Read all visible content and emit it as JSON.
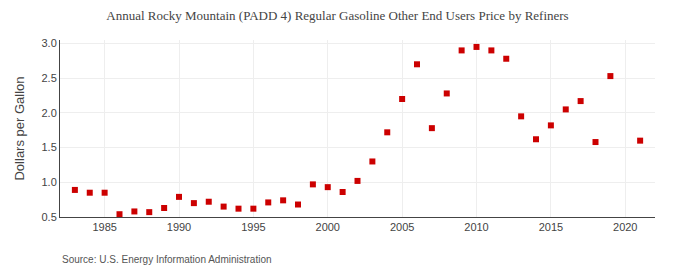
{
  "chart_data": {
    "type": "scatter",
    "title": "Annual Rocky Mountain (PADD 4) Regular Gasoline Other End Users Price by Refiners",
    "ylabel": "Dollars per Gallon",
    "annotations": [
      "Source: U.S. Energy Information Administration"
    ],
    "color": "#cc0000",
    "marker": "square",
    "x": [
      1983,
      1984,
      1985,
      1986,
      1987,
      1988,
      1989,
      1990,
      1991,
      1992,
      1993,
      1994,
      1995,
      1996,
      1997,
      1998,
      1999,
      2000,
      2001,
      2002,
      2003,
      2004,
      2005,
      2006,
      2007,
      2008,
      2009,
      2010,
      2011,
      2012,
      2013,
      2014,
      2015,
      2016,
      2017,
      2018,
      2019,
      2021
    ],
    "values": [
      0.89,
      0.85,
      0.85,
      0.54,
      0.58,
      0.57,
      0.63,
      0.79,
      0.7,
      0.72,
      0.65,
      0.62,
      0.62,
      0.71,
      0.74,
      0.68,
      0.97,
      0.93,
      0.86,
      1.02,
      1.3,
      1.72,
      2.2,
      2.7,
      1.78,
      2.28,
      2.9,
      2.95,
      2.9,
      2.78,
      1.95,
      1.62,
      1.82,
      2.05,
      2.17,
      1.58,
      2.53,
      1.6
    ],
    "xlim": [
      1982,
      2022
    ],
    "xticks": [
      1985,
      1990,
      1995,
      2000,
      2005,
      2010,
      2015,
      2020
    ],
    "ylim": [
      0.5,
      3.05
    ],
    "yticks": [
      0.5,
      {
        "value": 1,
        "label": "1.0"
      },
      1.5,
      {
        "value": 2,
        "label": "2.0"
      },
      2.5,
      {
        "value": 3,
        "label": "3.0"
      }
    ],
    "grid": true
  }
}
